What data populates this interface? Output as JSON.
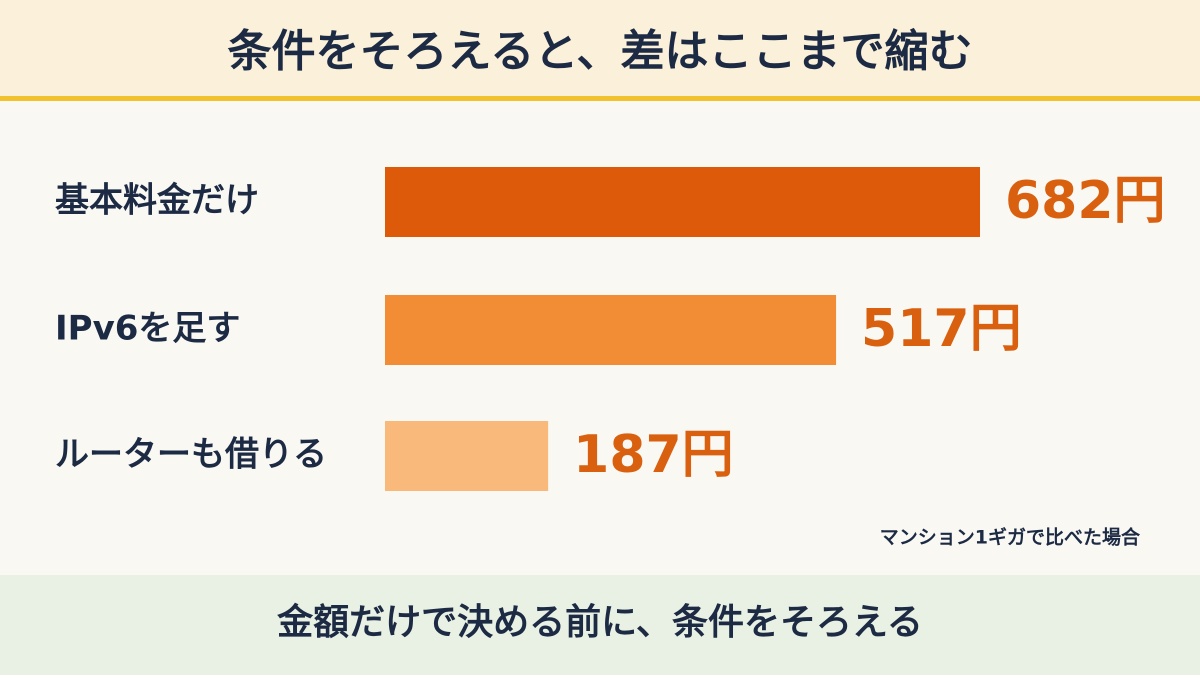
{
  "chart_data": {
    "type": "bar",
    "orientation": "horizontal",
    "title": "条件をそろえると、差はここまで縮む",
    "categories": [
      "基本料金だけ",
      "IPv6を足す",
      "ルーターも借りる"
    ],
    "values": [
      682,
      517,
      187
    ],
    "value_labels": [
      "682円",
      "517円",
      "187円"
    ],
    "colors": [
      "#dc5a0a",
      "#f28c35",
      "#f9b97a"
    ],
    "note": "マンション1ギガで比べた場合",
    "footer": "金額だけで決める前に、条件をそろえる"
  }
}
